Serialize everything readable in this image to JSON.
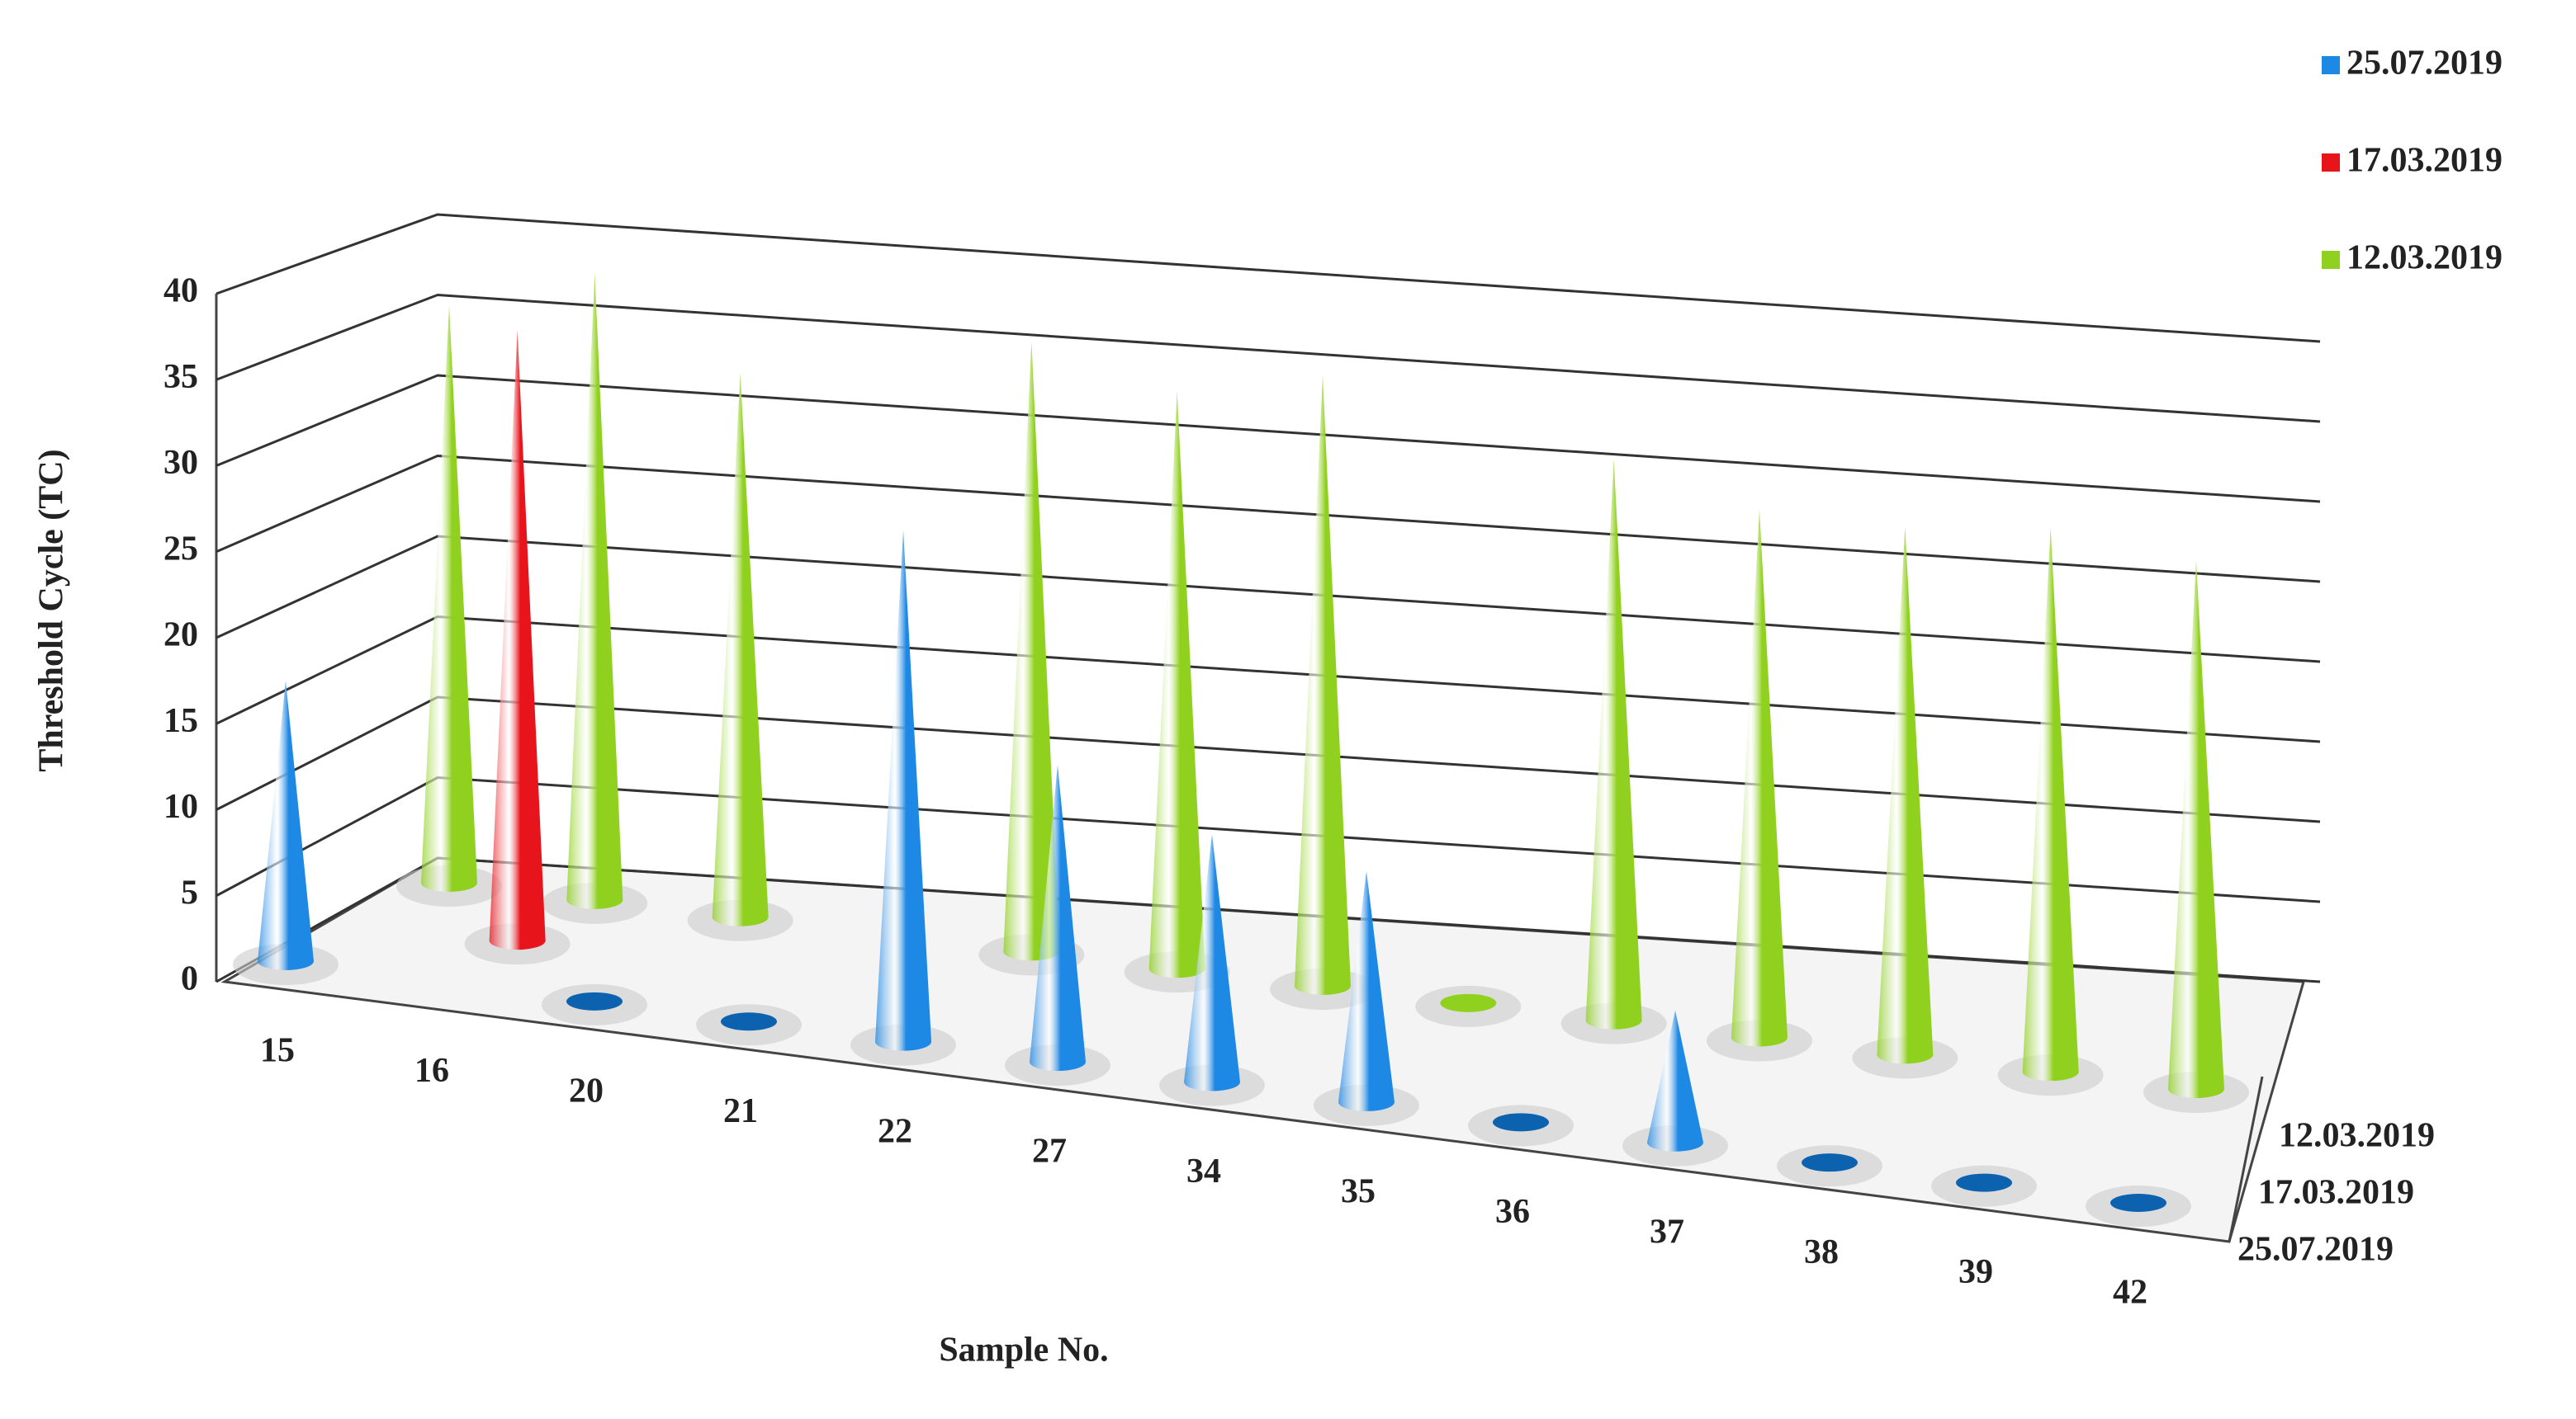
{
  "chart_data": {
    "type": "cone3d",
    "y_label": "Threshold Cycle (TC)",
    "x_label": "Sample No.",
    "categories": [
      "15",
      "16",
      "20",
      "21",
      "22",
      "27",
      "34",
      "35",
      "36",
      "37",
      "38",
      "39",
      "42"
    ],
    "series": [
      {
        "name": "25.07.2019",
        "color": "#1e88e5",
        "values": [
          17,
          null,
          0,
          0,
          31,
          18,
          15,
          14,
          0,
          8,
          0,
          0,
          0
        ]
      },
      {
        "name": "17.03.2019",
        "color": "#e8141c",
        "values": [
          null,
          37,
          null,
          null,
          null,
          null,
          null,
          null,
          null,
          null,
          null,
          null,
          null
        ]
      },
      {
        "name": "12.03.2019",
        "color": "#8fd11e",
        "values": [
          35,
          38,
          33,
          null,
          37,
          35,
          37,
          0,
          34,
          32,
          32,
          33,
          32
        ]
      }
    ],
    "ylim": [
      0,
      40
    ],
    "yticks": [
      0,
      5,
      10,
      15,
      20,
      25,
      30,
      35,
      40
    ],
    "grid": true
  }
}
